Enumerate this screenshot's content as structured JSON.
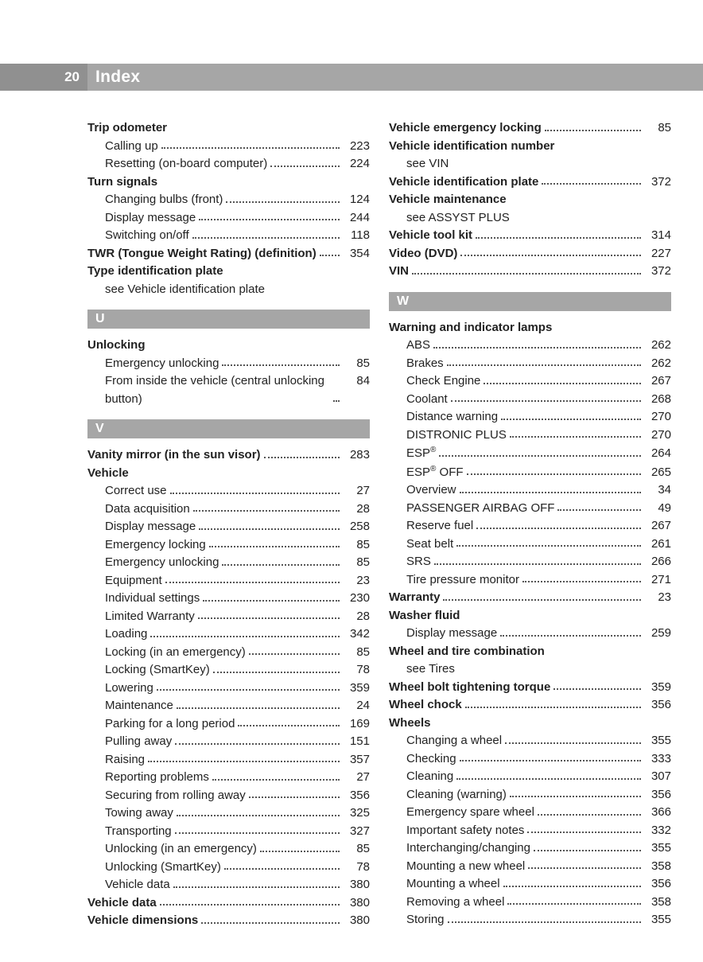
{
  "header": {
    "page_num": "20",
    "title": "Index"
  },
  "columns": {
    "left": [
      {
        "type": "heading",
        "label": "Trip odometer"
      },
      {
        "type": "sub",
        "label": "Calling up",
        "page": "223"
      },
      {
        "type": "sub",
        "label": "Resetting (on-board computer)",
        "page": "224"
      },
      {
        "type": "heading",
        "label": "Turn signals"
      },
      {
        "type": "sub",
        "label": "Changing bulbs (front)",
        "page": "124"
      },
      {
        "type": "sub",
        "label": "Display message",
        "page": "244"
      },
      {
        "type": "sub",
        "label": "Switching on/off",
        "page": "118"
      },
      {
        "type": "entry",
        "label": "TWR (Tongue Weight Rating) (definition)",
        "page": "354"
      },
      {
        "type": "heading",
        "label": "Type identification plate"
      },
      {
        "type": "see",
        "label": "see Vehicle identification plate"
      },
      {
        "type": "letter",
        "label": "U"
      },
      {
        "type": "heading",
        "label": "Unlocking"
      },
      {
        "type": "sub",
        "label": "Emergency unlocking",
        "page": "85"
      },
      {
        "type": "sub",
        "label": "From inside the vehicle (central unlocking button)",
        "page": "84"
      },
      {
        "type": "letter",
        "label": "V"
      },
      {
        "type": "entry",
        "label": "Vanity mirror (in the sun visor)",
        "page": "283"
      },
      {
        "type": "heading",
        "label": "Vehicle"
      },
      {
        "type": "sub",
        "label": "Correct use",
        "page": "27"
      },
      {
        "type": "sub",
        "label": "Data acquisition",
        "page": "28"
      },
      {
        "type": "sub",
        "label": "Display message",
        "page": "258"
      },
      {
        "type": "sub",
        "label": "Emergency locking",
        "page": "85"
      },
      {
        "type": "sub",
        "label": "Emergency unlocking",
        "page": "85"
      },
      {
        "type": "sub",
        "label": "Equipment",
        "page": "23"
      },
      {
        "type": "sub",
        "label": "Individual settings",
        "page": "230"
      },
      {
        "type": "sub",
        "label": "Limited Warranty",
        "page": "28"
      },
      {
        "type": "sub",
        "label": "Loading",
        "page": "342"
      },
      {
        "type": "sub",
        "label": "Locking (in an emergency)",
        "page": "85"
      },
      {
        "type": "sub",
        "label": "Locking (SmartKey)",
        "page": "78"
      },
      {
        "type": "sub",
        "label": "Lowering",
        "page": "359"
      },
      {
        "type": "sub",
        "label": "Maintenance",
        "page": "24"
      },
      {
        "type": "sub",
        "label": "Parking for a long period",
        "page": "169"
      },
      {
        "type": "sub",
        "label": "Pulling away",
        "page": "151"
      },
      {
        "type": "sub",
        "label": "Raising",
        "page": "357"
      },
      {
        "type": "sub",
        "label": "Reporting problems",
        "page": "27"
      },
      {
        "type": "sub",
        "label": "Securing from rolling away",
        "page": "356"
      },
      {
        "type": "sub",
        "label": "Towing away",
        "page": "325"
      },
      {
        "type": "sub",
        "label": "Transporting",
        "page": "327"
      },
      {
        "type": "sub",
        "label": "Unlocking (in an emergency)",
        "page": "85"
      },
      {
        "type": "sub",
        "label": "Unlocking (SmartKey)",
        "page": "78"
      },
      {
        "type": "sub",
        "label": "Vehicle data",
        "page": "380"
      },
      {
        "type": "entry",
        "label": "Vehicle data",
        "page": "380"
      },
      {
        "type": "entry",
        "label": "Vehicle dimensions",
        "page": "380"
      }
    ],
    "right": [
      {
        "type": "entry",
        "label": "Vehicle emergency locking",
        "page": "85"
      },
      {
        "type": "heading",
        "label": "Vehicle identification number"
      },
      {
        "type": "see",
        "label": "see VIN"
      },
      {
        "type": "entry",
        "label": "Vehicle identification plate",
        "page": "372"
      },
      {
        "type": "heading",
        "label": "Vehicle maintenance"
      },
      {
        "type": "see",
        "label": "see ASSYST PLUS"
      },
      {
        "type": "entry",
        "label": "Vehicle tool kit",
        "page": "314"
      },
      {
        "type": "entry",
        "label": "Video (DVD)",
        "page": "227"
      },
      {
        "type": "entry",
        "label": "VIN",
        "page": "372"
      },
      {
        "type": "letter",
        "label": "W"
      },
      {
        "type": "heading",
        "label": "Warning and indicator lamps"
      },
      {
        "type": "sub",
        "label": "ABS",
        "page": "262"
      },
      {
        "type": "sub",
        "label": "Brakes",
        "page": "262"
      },
      {
        "type": "sub",
        "label": "Check Engine",
        "page": "267"
      },
      {
        "type": "sub",
        "label": "Coolant",
        "page": "268"
      },
      {
        "type": "sub",
        "label": "Distance warning",
        "page": "270"
      },
      {
        "type": "sub",
        "label": "DISTRONIC PLUS",
        "page": "270"
      },
      {
        "type": "sub",
        "label": "ESP®",
        "page": "264",
        "html": true
      },
      {
        "type": "sub",
        "label": "ESP® OFF",
        "page": "265",
        "html": true
      },
      {
        "type": "sub",
        "label": "Overview",
        "page": "34"
      },
      {
        "type": "sub",
        "label": "PASSENGER AIRBAG OFF",
        "page": "49"
      },
      {
        "type": "sub",
        "label": "Reserve fuel",
        "page": "267"
      },
      {
        "type": "sub",
        "label": "Seat belt",
        "page": "261"
      },
      {
        "type": "sub",
        "label": "SRS",
        "page": "266"
      },
      {
        "type": "sub",
        "label": "Tire pressure monitor",
        "page": "271"
      },
      {
        "type": "entry",
        "label": "Warranty",
        "page": "23"
      },
      {
        "type": "heading",
        "label": "Washer fluid"
      },
      {
        "type": "sub",
        "label": "Display message",
        "page": "259"
      },
      {
        "type": "heading",
        "label": "Wheel and tire combination"
      },
      {
        "type": "see",
        "label": "see Tires"
      },
      {
        "type": "entry",
        "label": "Wheel bolt tightening torque",
        "page": "359"
      },
      {
        "type": "entry",
        "label": "Wheel chock",
        "page": "356"
      },
      {
        "type": "heading",
        "label": "Wheels"
      },
      {
        "type": "sub",
        "label": "Changing a wheel",
        "page": "355"
      },
      {
        "type": "sub",
        "label": "Checking",
        "page": "333"
      },
      {
        "type": "sub",
        "label": "Cleaning",
        "page": "307"
      },
      {
        "type": "sub",
        "label": "Cleaning (warning)",
        "page": "356"
      },
      {
        "type": "sub",
        "label": "Emergency spare wheel",
        "page": "366"
      },
      {
        "type": "sub",
        "label": "Important safety notes",
        "page": "332"
      },
      {
        "type": "sub",
        "label": "Interchanging/changing",
        "page": "355"
      },
      {
        "type": "sub",
        "label": "Mounting a new wheel",
        "page": "358"
      },
      {
        "type": "sub",
        "label": "Mounting a wheel",
        "page": "356"
      },
      {
        "type": "sub",
        "label": "Removing a wheel",
        "page": "358"
      },
      {
        "type": "sub",
        "label": "Storing",
        "page": "355"
      }
    ]
  }
}
